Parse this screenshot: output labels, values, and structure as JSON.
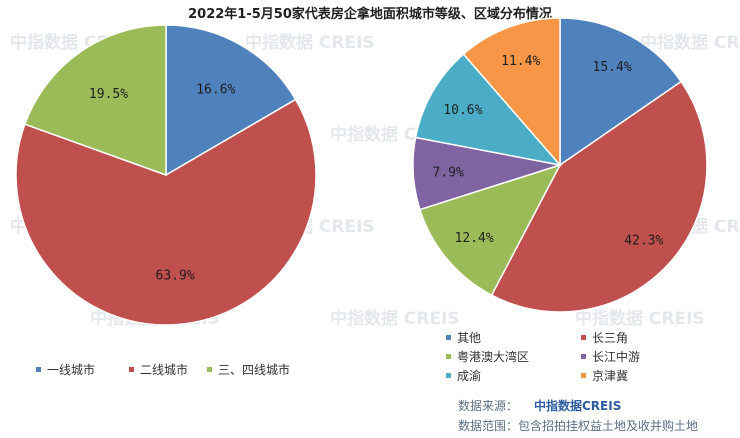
{
  "title": "2022年1-5月50家代表房企拿地面积城市等级、区域分布情况",
  "watermark": "中指数据 CREIS",
  "source": {
    "label": "数据来源：",
    "brand": "中指数据CREIS",
    "scope": "数据范围：包含招拍挂权益土地及收并购土地"
  },
  "chart_data": [
    {
      "type": "pie",
      "title": "",
      "slices": [
        {
          "label": "一线城市",
          "value": 16.6,
          "display": "16.6%",
          "color": "#4f81bd"
        },
        {
          "label": "二线城市",
          "value": 63.9,
          "display": "63.9%",
          "color": "#c0504d"
        },
        {
          "label": "三、四线城市",
          "value": 19.5,
          "display": "19.5%",
          "color": "#9bbb59"
        }
      ],
      "start": "12 o'clock",
      "direction": "clockwise",
      "legend_position": "bottom"
    },
    {
      "type": "pie",
      "title": "",
      "slices": [
        {
          "label": "其他",
          "value": 15.4,
          "display": "15.4%",
          "color": "#4f81bd"
        },
        {
          "label": "长三角",
          "value": 42.3,
          "display": "42.3%",
          "color": "#c0504d"
        },
        {
          "label": "粤港澳大湾区",
          "value": 12.4,
          "display": "12.4%",
          "color": "#9bbb59"
        },
        {
          "label": "长江中游",
          "value": 7.9,
          "display": "7.9%",
          "color": "#8064a2"
        },
        {
          "label": "成渝",
          "value": 10.6,
          "display": "10.6%",
          "color": "#4bacc6"
        },
        {
          "label": "京津冀",
          "value": 11.4,
          "display": "11.4%",
          "color": "#f79646"
        }
      ],
      "start": "12 o'clock",
      "direction": "clockwise",
      "legend_position": "bottom"
    }
  ]
}
